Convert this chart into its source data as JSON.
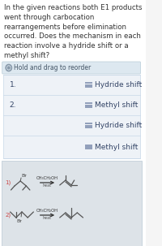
{
  "bg_color": "#f5f5f5",
  "white_bg": "#ffffff",
  "header_bg": "#dde8f0",
  "list_bg": "#eef2f7",
  "rxn_bg": "#dde3e8",
  "title_text": "In the given reactions both E1 products\nwent through carbocation\nrearrangements before elimination\noccurred. Does the mechanism in each\nreaction involve a hydride shift or a\nmethyl shift?",
  "hold_text": "Hold and drag to reorder",
  "item1_label": "1.",
  "item2_label": "2.",
  "options": [
    "Hydride shift",
    "Methyl shift",
    "Hydride shift",
    "Methyl shift"
  ],
  "reaction_label1": "1)",
  "reaction_label2": "2)",
  "reagent": "CH₃CH₂OH",
  "condition": "heat",
  "br_label": "Br",
  "title_fontsize": 6.2,
  "label_fontsize": 6.5,
  "option_fontsize": 6.5,
  "bond_color": "#555555",
  "text_color": "#333333",
  "rxn_label_color": "#cc4444",
  "header_text_color": "#445566"
}
